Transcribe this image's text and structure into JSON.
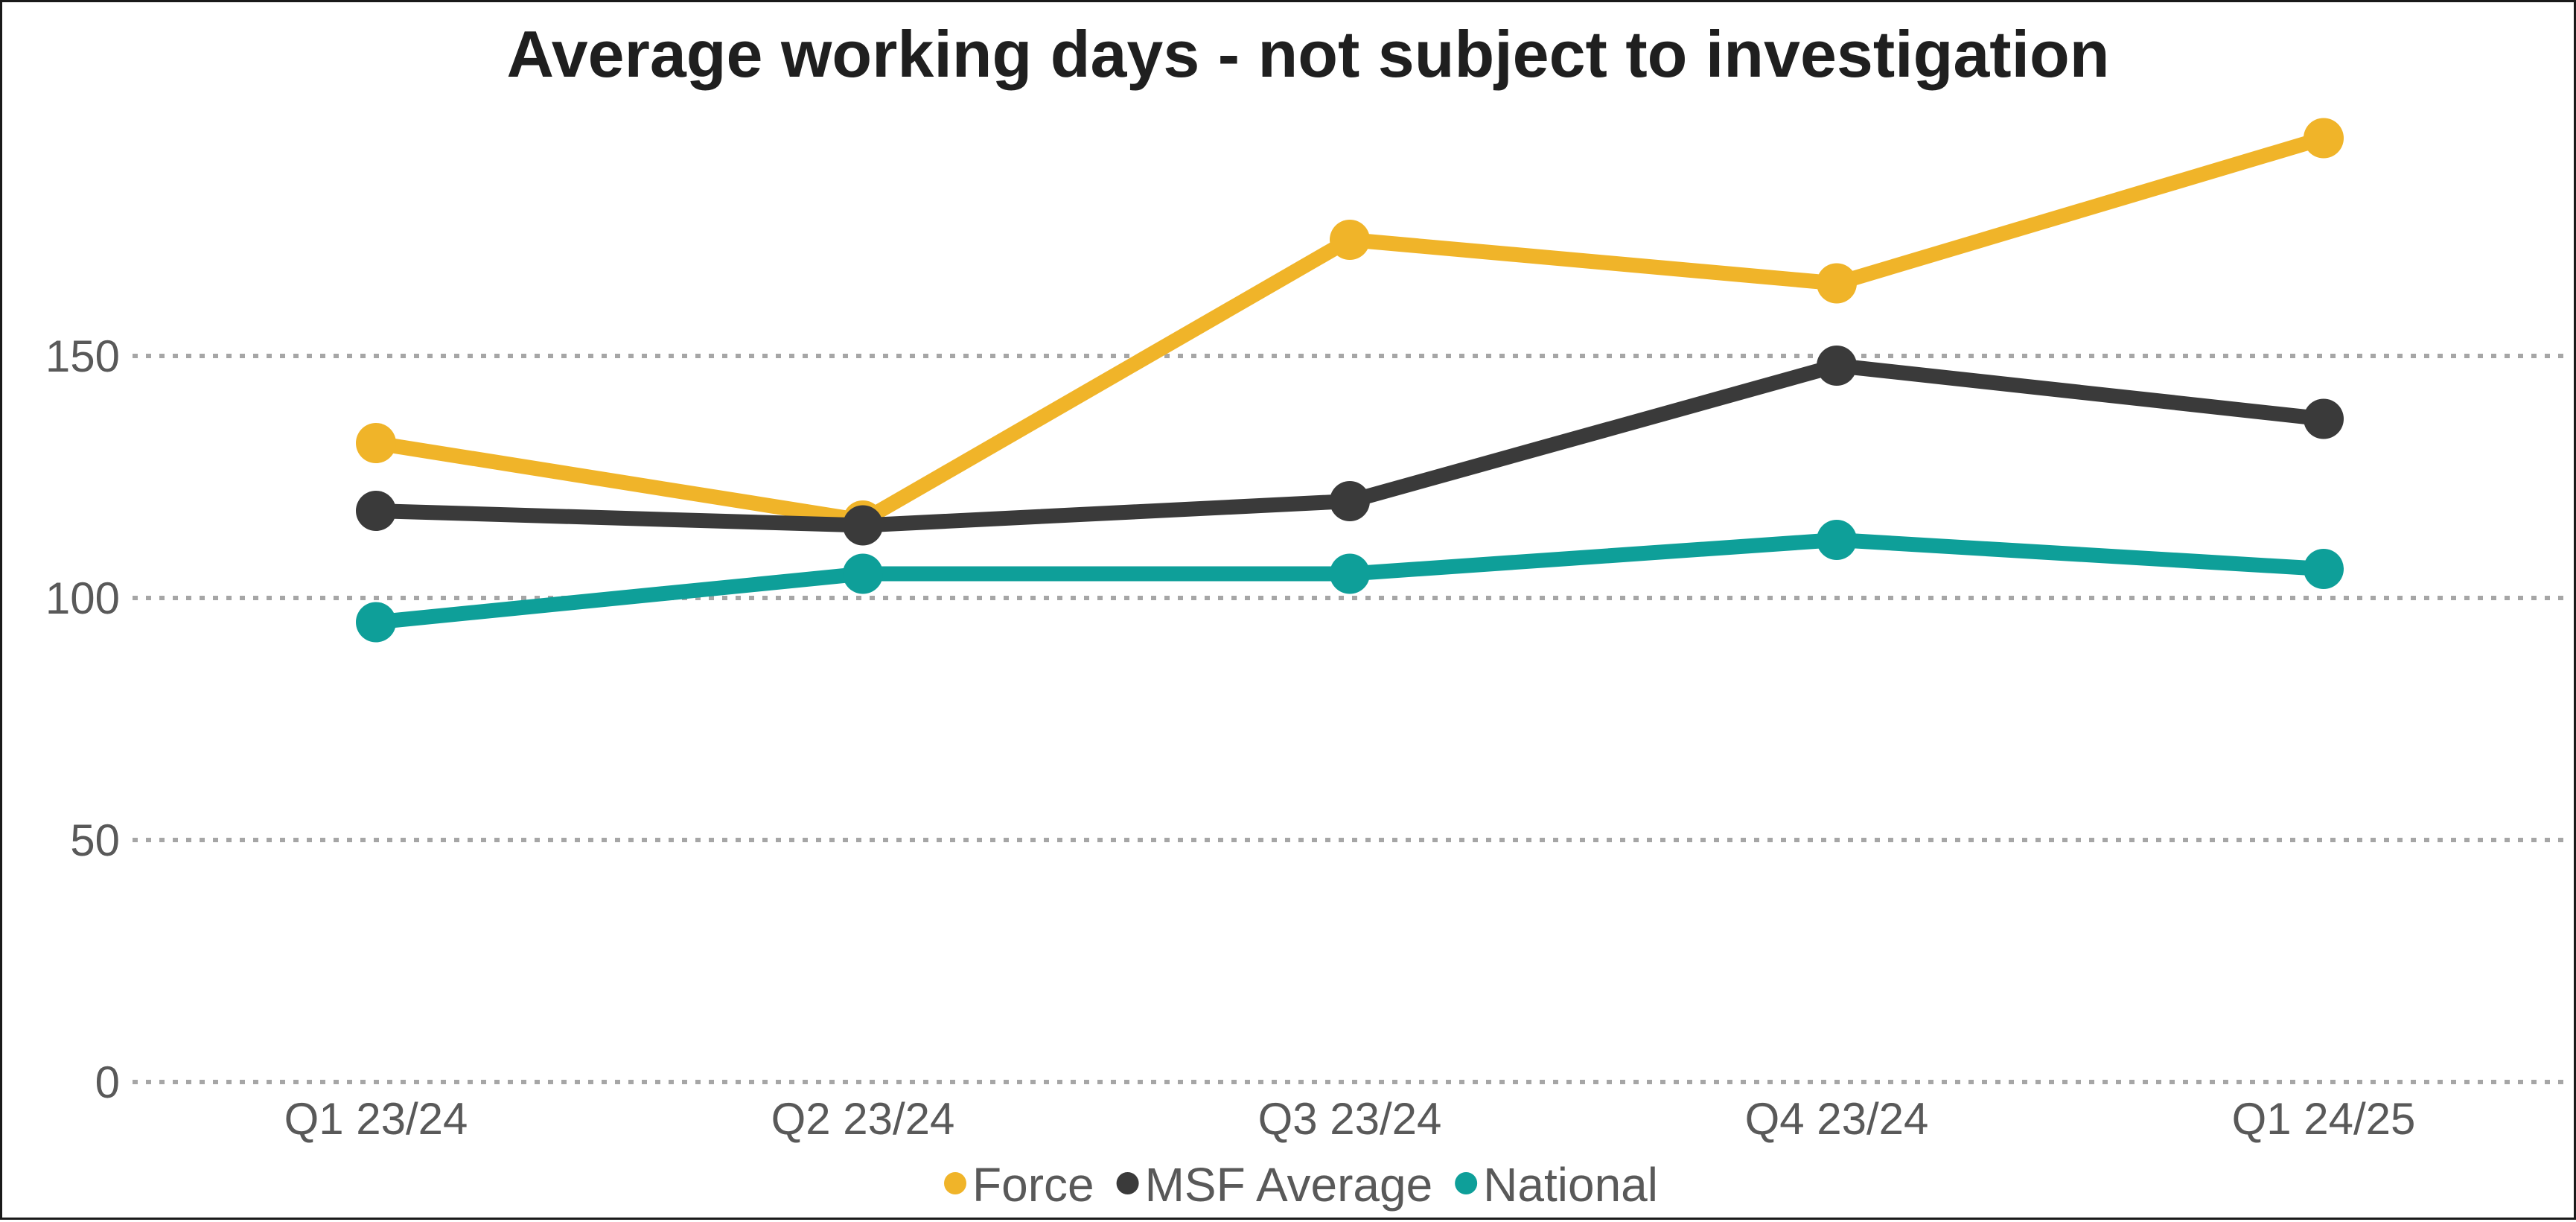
{
  "chart_data": {
    "type": "line",
    "title": "Average working days - not subject to investigation",
    "xlabel": "",
    "ylabel": "",
    "categories": [
      "Q1 23/24",
      "Q2 23/24",
      "Q3 23/24",
      "Q4 23/24",
      "Q1 24/25"
    ],
    "ylim": [
      0,
      200
    ],
    "yticks": [
      0,
      50,
      100,
      150
    ],
    "grid": true,
    "legend_position": "bottom",
    "series": [
      {
        "name": "Force",
        "color": "#F0B429",
        "values": [
          132,
          116,
          174,
          165,
          195
        ]
      },
      {
        "name": "MSF Average",
        "color": "#3A3A3A",
        "values": [
          118,
          115,
          120,
          148,
          137
        ]
      },
      {
        "name": "National",
        "color": "#0E9F99",
        "values": [
          95,
          105,
          105,
          112,
          106
        ]
      }
    ]
  }
}
